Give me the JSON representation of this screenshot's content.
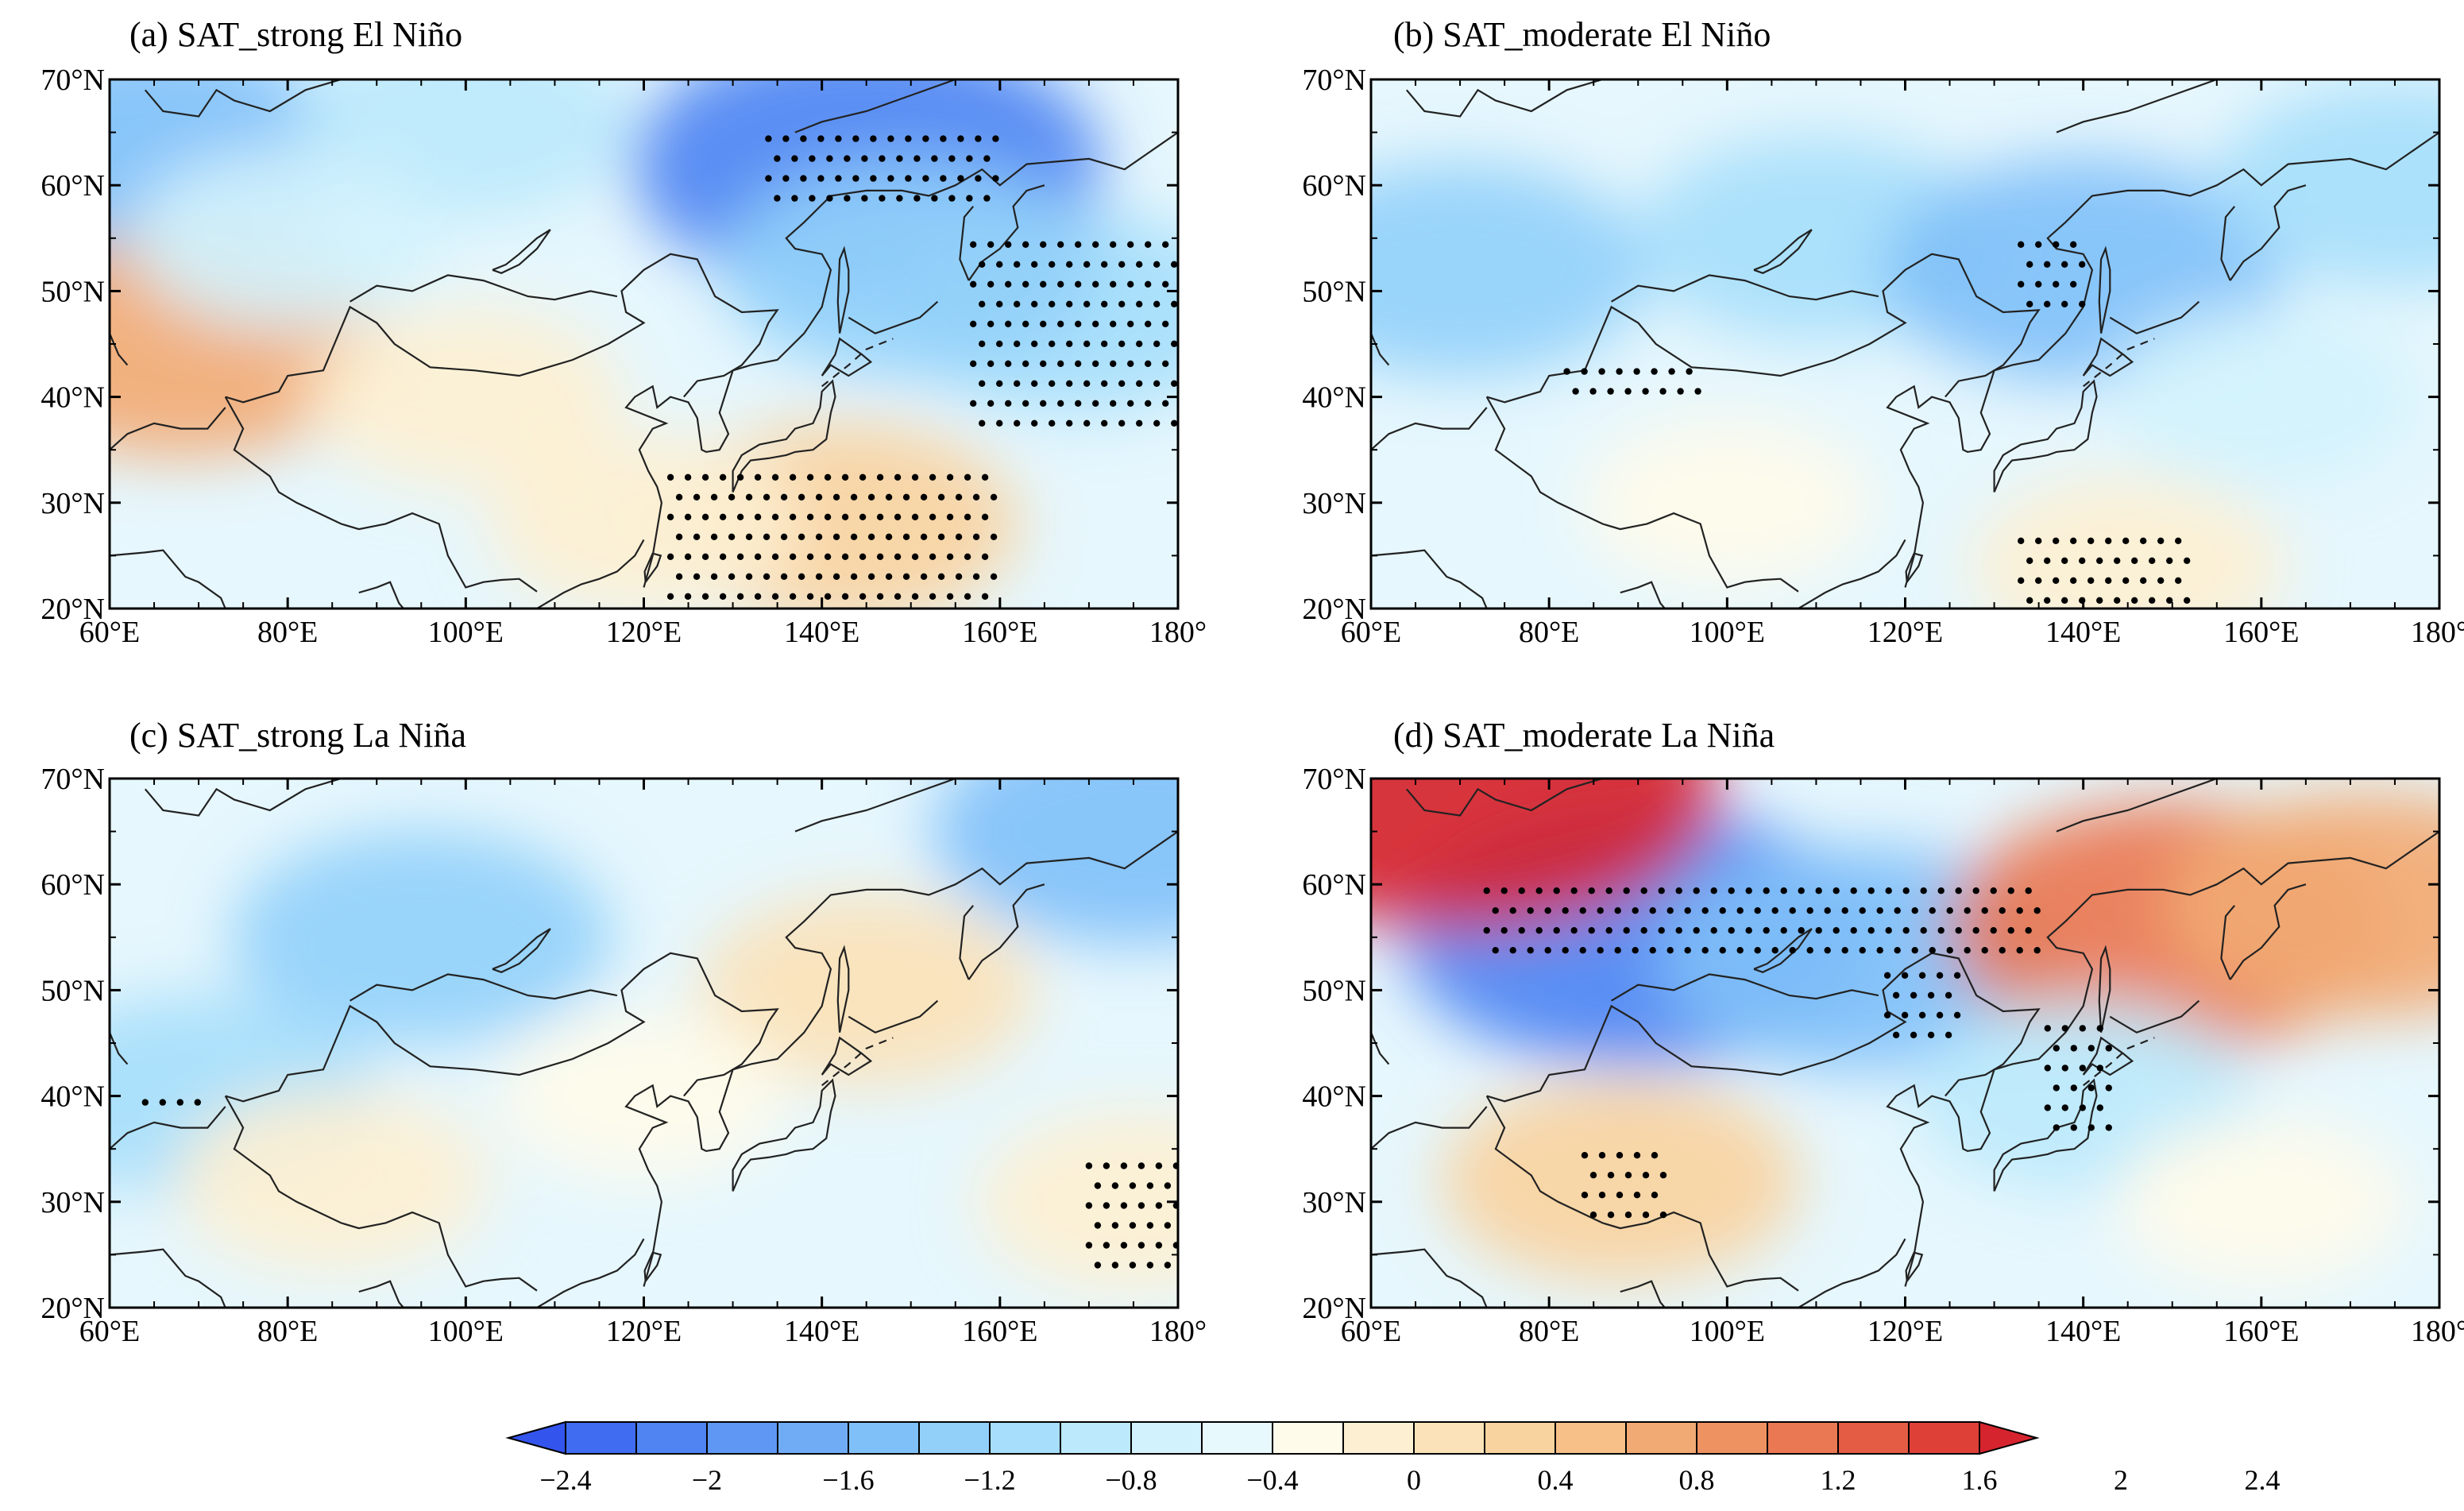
{
  "figure": {
    "panels": [
      {
        "id": "a",
        "title": "(a) SAT_strong El Niño"
      },
      {
        "id": "b",
        "title": "(b) SAT_moderate El Niño"
      },
      {
        "id": "c",
        "title": "(c) SAT_strong La Niña"
      },
      {
        "id": "d",
        "title": "(d) SAT_moderate La Niña"
      }
    ],
    "lat_labels": [
      "70°N",
      "60°N",
      "50°N",
      "40°N",
      "30°N",
      "20°N"
    ],
    "lon_labels": [
      "60°E",
      "80°E",
      "100°E",
      "120°E",
      "140°E",
      "160°E",
      "180°"
    ],
    "colorbar": {
      "labels": [
        "−2.4",
        "−2",
        "−1.6",
        "−1.2",
        "−0.8",
        "−0.4",
        "0",
        "0.4",
        "0.8",
        "1.2",
        "1.6",
        "2",
        "2.4"
      ],
      "colors": [
        "#3355ee",
        "#3f6cf0",
        "#4f84f2",
        "#5f98f4",
        "#70acf6",
        "#80c0f8",
        "#92d0fa",
        "#a6defb",
        "#bce9fc",
        "#d2f2fd",
        "#e8f9fe",
        "#fefbea",
        "#fdf0d2",
        "#fbe2b8",
        "#f9d39f",
        "#f6c088",
        "#f2aa74",
        "#ee9262",
        "#ea7852",
        "#e45c44",
        "#de4038",
        "#d6242e"
      ]
    }
  },
  "chart_data": {
    "type": "heatmap",
    "description_variable": "SAT anomaly",
    "x_range": [
      60,
      180
    ],
    "y_range": [
      20,
      70
    ],
    "color_range": [
      -2.4,
      2.4
    ],
    "panels": [
      {
        "id": "a",
        "title": "(a) SAT_strong El Niño",
        "features": [
          {
            "lon": 65,
            "lat": 63,
            "value": -1.2
          },
          {
            "lon": 100,
            "lat": 66,
            "value": -0.6
          },
          {
            "lon": 145,
            "lat": 62,
            "value": -1.8
          },
          {
            "lon": 168,
            "lat": 48,
            "value": -0.8
          },
          {
            "lon": 150,
            "lat": 52,
            "value": -1.0
          },
          {
            "lon": 68,
            "lat": 45,
            "value": 1.2
          },
          {
            "lon": 100,
            "lat": 40,
            "value": 0.4
          },
          {
            "lon": 142,
            "lat": 28,
            "value": 0.8
          },
          {
            "lon": 120,
            "lat": 28,
            "value": 0.4
          },
          {
            "lon": 80,
            "lat": 55,
            "value": -0.4
          }
        ],
        "stipple_regions": [
          {
            "lon": [
              134,
              160
            ],
            "lat": [
              58,
              65
            ]
          },
          {
            "lon": [
              157,
              180
            ],
            "lat": [
              37,
              55
            ]
          },
          {
            "lon": [
              123,
              160
            ],
            "lat": [
              20,
              33
            ]
          }
        ]
      },
      {
        "id": "b",
        "title": "(b) SAT_moderate El Niño",
        "features": [
          {
            "lon": 70,
            "lat": 52,
            "value": -1.0
          },
          {
            "lon": 110,
            "lat": 55,
            "value": -0.8
          },
          {
            "lon": 140,
            "lat": 52,
            "value": -1.2
          },
          {
            "lon": 175,
            "lat": 60,
            "value": -0.8
          },
          {
            "lon": 100,
            "lat": 30,
            "value": 0.2
          },
          {
            "lon": 145,
            "lat": 24,
            "value": 0.4
          },
          {
            "lon": 160,
            "lat": 40,
            "value": -0.4
          }
        ],
        "stipple_regions": [
          {
            "lon": [
              133,
              140
            ],
            "lat": [
              48,
              55
            ]
          },
          {
            "lon": [
              82,
              97
            ],
            "lat": [
              40,
              43
            ]
          },
          {
            "lon": [
              133,
              152
            ],
            "lat": [
              20,
              27
            ]
          }
        ]
      },
      {
        "id": "c",
        "title": "(c) SAT_strong La Niña",
        "features": [
          {
            "lon": 95,
            "lat": 55,
            "value": -1.0
          },
          {
            "lon": 70,
            "lat": 40,
            "value": -0.8
          },
          {
            "lon": 175,
            "lat": 65,
            "value": -1.2
          },
          {
            "lon": 145,
            "lat": 50,
            "value": 0.6
          },
          {
            "lon": 175,
            "lat": 30,
            "value": 0.4
          },
          {
            "lon": 85,
            "lat": 32,
            "value": 0.4
          },
          {
            "lon": 120,
            "lat": 40,
            "value": 0.2
          }
        ],
        "stipple_regions": [
          {
            "lon": [
              64,
              71
            ],
            "lat": [
              38,
              40
            ]
          },
          {
            "lon": [
              170,
              180
            ],
            "lat": [
              23,
              34
            ]
          }
        ]
      },
      {
        "id": "d",
        "title": "(d) SAT_moderate La Niña",
        "features": [
          {
            "lon": 90,
            "lat": 55,
            "value": -1.8
          },
          {
            "lon": 115,
            "lat": 53,
            "value": -1.2
          },
          {
            "lon": 70,
            "lat": 69,
            "value": 2.2
          },
          {
            "lon": 150,
            "lat": 56,
            "value": 1.6
          },
          {
            "lon": 172,
            "lat": 58,
            "value": 1.2
          },
          {
            "lon": 88,
            "lat": 32,
            "value": 0.8
          },
          {
            "lon": 140,
            "lat": 40,
            "value": -0.6
          },
          {
            "lon": 160,
            "lat": 30,
            "value": 0.2
          }
        ],
        "stipple_regions": [
          {
            "lon": [
              73,
              135
            ],
            "lat": [
              52,
              60
            ]
          },
          {
            "lon": [
              118,
              126
            ],
            "lat": [
              45,
              52
            ]
          },
          {
            "lon": [
              136,
              143
            ],
            "lat": [
              37,
              47
            ]
          },
          {
            "lon": [
              84,
              93
            ],
            "lat": [
              28,
              35
            ]
          }
        ]
      }
    ]
  }
}
